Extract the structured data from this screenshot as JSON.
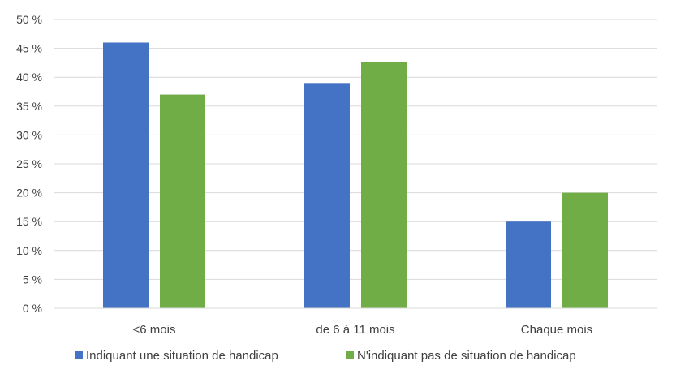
{
  "chart_data": {
    "type": "bar",
    "categories": [
      "<6 mois",
      "de 6 à 11 mois",
      "Chaque mois"
    ],
    "series": [
      {
        "name": "Indiquant une situation de handicap",
        "values": [
          46,
          39,
          15
        ],
        "color": "#4472C4"
      },
      {
        "name": "N'indiquant pas de situation de handicap",
        "values": [
          37,
          42.7,
          20
        ],
        "color": "#70AD47"
      }
    ],
    "ylim": [
      0,
      50
    ],
    "yticks": [
      0,
      5,
      10,
      15,
      20,
      25,
      30,
      35,
      40,
      45,
      50
    ],
    "ytick_labels": [
      "0 %",
      "5 %",
      "10 %",
      "15 %",
      "20 %",
      "25 %",
      "30 %",
      "35 %",
      "40 %",
      "45 %",
      "50 %"
    ],
    "grid": true,
    "legend_position": "bottom",
    "title": "",
    "xlabel": "",
    "ylabel": ""
  }
}
